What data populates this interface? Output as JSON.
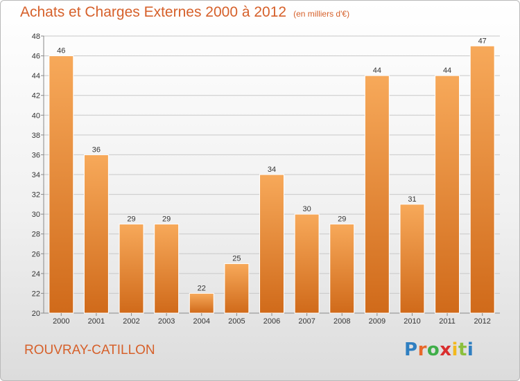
{
  "title": "Achats et Charges Externes 2000 à 2012",
  "unit_note": "(en milliers d'€)",
  "place_name": "ROUVRAY-CATILLON",
  "logo": {
    "text": "Proxiti",
    "letters": [
      "P",
      "r",
      "o",
      "x",
      "i",
      "t",
      "i"
    ],
    "colors": [
      "#2f7fc1",
      "#e8682a",
      "#3fae49",
      "#d92e2e",
      "#f2b81d",
      "#8bbf3c",
      "#2f7fc1"
    ]
  },
  "colors": {
    "title": "#d6602a",
    "bar_top": "#f7a95a",
    "bar_bottom": "#d06a1a",
    "grid": "#c8c8c8"
  },
  "chart_data": {
    "type": "bar",
    "categories": [
      "2000",
      "2001",
      "2002",
      "2003",
      "2004",
      "2005",
      "2006",
      "2007",
      "2008",
      "2009",
      "2010",
      "2011",
      "2012"
    ],
    "values": [
      46,
      36,
      29,
      29,
      22,
      25,
      34,
      30,
      29,
      44,
      31,
      44,
      47
    ],
    "data_labels": [
      "46",
      "36",
      "29",
      "29",
      "22",
      "25",
      "34",
      "30",
      "29",
      "44",
      "31",
      "44",
      "47"
    ],
    "ylim": [
      20,
      48
    ],
    "yticks": [
      20,
      22,
      24,
      26,
      28,
      30,
      32,
      34,
      36,
      38,
      40,
      42,
      44,
      46,
      48
    ],
    "grid": true
  }
}
